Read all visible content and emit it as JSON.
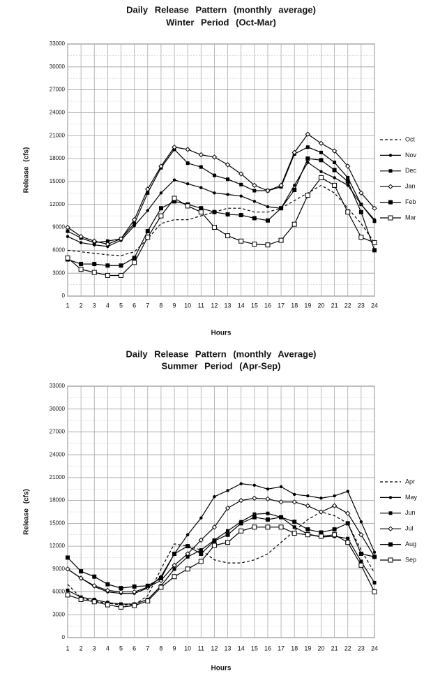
{
  "chart_data": [
    {
      "type": "line",
      "title": "Daily Release Pattern (monthly average)",
      "subtitle": "Winter Period (Oct-Mar)",
      "xlabel": "Hours",
      "ylabel": "Release (cfs)",
      "x": [
        1,
        2,
        3,
        4,
        5,
        6,
        7,
        8,
        9,
        10,
        11,
        12,
        13,
        14,
        15,
        16,
        17,
        18,
        19,
        20,
        21,
        22,
        23,
        24
      ],
      "xlim": [
        1,
        24
      ],
      "xticks": [
        1,
        2,
        3,
        4,
        5,
        6,
        7,
        8,
        9,
        10,
        11,
        12,
        13,
        14,
        15,
        16,
        17,
        18,
        19,
        20,
        21,
        22,
        23,
        24
      ],
      "ylim": [
        0,
        33000
      ],
      "yticks": [
        0,
        3000,
        6000,
        9000,
        12000,
        15000,
        18000,
        21000,
        24000,
        27000,
        30000,
        33000
      ],
      "grid": true,
      "series": [
        {
          "name": "Oct",
          "color": "#000000",
          "dash": true,
          "marker": "none",
          "values": [
            6000,
            5800,
            5600,
            5400,
            5300,
            5800,
            7500,
            9500,
            10000,
            10000,
            10500,
            11000,
            11500,
            11500,
            11000,
            11000,
            11500,
            12500,
            13500,
            14500,
            13500,
            11500,
            9500,
            7000
          ]
        },
        {
          "name": "Nov",
          "color": "#000000",
          "dash": false,
          "marker": "circle",
          "values": [
            7800,
            7000,
            6700,
            6500,
            7300,
            9200,
            11200,
            13500,
            15200,
            14700,
            14200,
            13500,
            13300,
            13100,
            12400,
            11700,
            11500,
            14500,
            17500,
            16300,
            15500,
            14500,
            12000,
            10000
          ]
        },
        {
          "name": "Dec",
          "color": "#000000",
          "dash": false,
          "marker": "square",
          "values": [
            8500,
            7600,
            7000,
            7200,
            7500,
            9500,
            13500,
            16800,
            19200,
            17400,
            16900,
            15800,
            15300,
            14600,
            13800,
            13800,
            14300,
            18600,
            19500,
            18800,
            17500,
            15500,
            12000,
            9800
          ]
        },
        {
          "name": "Jan",
          "color": "#000000",
          "dash": false,
          "marker": "diamond",
          "values": [
            9000,
            7800,
            7200,
            6800,
            7500,
            10000,
            14000,
            17000,
            19500,
            19200,
            18500,
            18200,
            17200,
            16000,
            14500,
            13800,
            14500,
            18800,
            21200,
            20000,
            19000,
            17000,
            13500,
            11500
          ]
        },
        {
          "name": "Feb",
          "color": "#000000",
          "dash": false,
          "marker": "bigsquare",
          "values": [
            4800,
            4200,
            4200,
            4000,
            4000,
            5000,
            8500,
            11500,
            12400,
            12000,
            11500,
            11000,
            10700,
            10600,
            10200,
            9900,
            11500,
            13900,
            18000,
            17800,
            16500,
            15000,
            11000,
            6000
          ]
        },
        {
          "name": "Mar",
          "color": "#000000",
          "dash": false,
          "marker": "opensquare",
          "values": [
            5000,
            3500,
            3100,
            2700,
            2700,
            4400,
            7700,
            10500,
            12800,
            11800,
            11000,
            9000,
            7900,
            7200,
            6800,
            6700,
            7300,
            9400,
            13200,
            15500,
            14500,
            11000,
            7700,
            7000
          ]
        }
      ]
    },
    {
      "type": "line",
      "title": "Daily Release Pattern (monthly Average)",
      "subtitle": "Summer Period (Apr-Sep)",
      "xlabel": "Hours",
      "ylabel": "Release (cfs)",
      "x": [
        1,
        2,
        3,
        4,
        5,
        6,
        7,
        8,
        9,
        10,
        11,
        12,
        13,
        14,
        15,
        16,
        17,
        18,
        19,
        20,
        21,
        22,
        23,
        24
      ],
      "xlim": [
        1,
        24
      ],
      "xticks": [
        1,
        2,
        3,
        4,
        5,
        6,
        7,
        8,
        9,
        10,
        11,
        12,
        13,
        14,
        15,
        16,
        17,
        18,
        19,
        20,
        21,
        22,
        23,
        24
      ],
      "ylim": [
        0,
        33000
      ],
      "yticks": [
        0,
        3000,
        6000,
        9000,
        12000,
        15000,
        18000,
        21000,
        24000,
        27000,
        30000,
        33000
      ],
      "grid": true,
      "series": [
        {
          "name": "Apr",
          "color": "#000000",
          "dash": true,
          "marker": "none",
          "values": [
            7000,
            5200,
            4800,
            4500,
            4300,
            4300,
            5500,
            9000,
            12300,
            12000,
            11500,
            10200,
            9800,
            9800,
            10200,
            11000,
            12500,
            14000,
            15500,
            16500,
            16000,
            15000,
            11500,
            8500
          ]
        },
        {
          "name": "May",
          "color": "#000000",
          "dash": false,
          "marker": "circle",
          "values": [
            9000,
            7800,
            6700,
            6000,
            5800,
            5800,
            6500,
            8000,
            11000,
            13500,
            15700,
            18500,
            19300,
            20200,
            20000,
            19500,
            19800,
            18800,
            18600,
            18300,
            18600,
            19200,
            15200,
            11200
          ]
        },
        {
          "name": "Jun",
          "color": "#000000",
          "dash": false,
          "marker": "square",
          "values": [
            6200,
            5300,
            5000,
            4600,
            4400,
            4400,
            5000,
            6800,
            9000,
            10600,
            11500,
            12800,
            14000,
            15200,
            16200,
            16300,
            15800,
            14500,
            13600,
            13200,
            13300,
            13000,
            10000,
            7200
          ]
        },
        {
          "name": "Jul",
          "color": "#000000",
          "dash": false,
          "marker": "diamond",
          "values": [
            9000,
            7800,
            6800,
            6200,
            6000,
            6000,
            6600,
            7500,
            9500,
            11000,
            12800,
            14500,
            17000,
            18000,
            18300,
            18200,
            17800,
            17800,
            17300,
            16500,
            17300,
            16300,
            13500,
            10600
          ]
        },
        {
          "name": "Aug",
          "color": "#000000",
          "dash": false,
          "marker": "bigsquare",
          "values": [
            10500,
            8700,
            8000,
            7000,
            6500,
            6700,
            6800,
            7800,
            11000,
            12000,
            11000,
            12700,
            13500,
            15000,
            15800,
            15500,
            15800,
            15200,
            14200,
            13800,
            14200,
            15000,
            11000,
            10600
          ]
        },
        {
          "name": "Sep",
          "color": "#000000",
          "dash": false,
          "marker": "opensquare",
          "values": [
            5600,
            5000,
            4700,
            4300,
            4000,
            4200,
            4800,
            6600,
            8000,
            9000,
            10000,
            12100,
            12500,
            14000,
            14500,
            14500,
            14500,
            13700,
            13500,
            13300,
            13500,
            12500,
            9500,
            6000
          ]
        }
      ]
    }
  ]
}
